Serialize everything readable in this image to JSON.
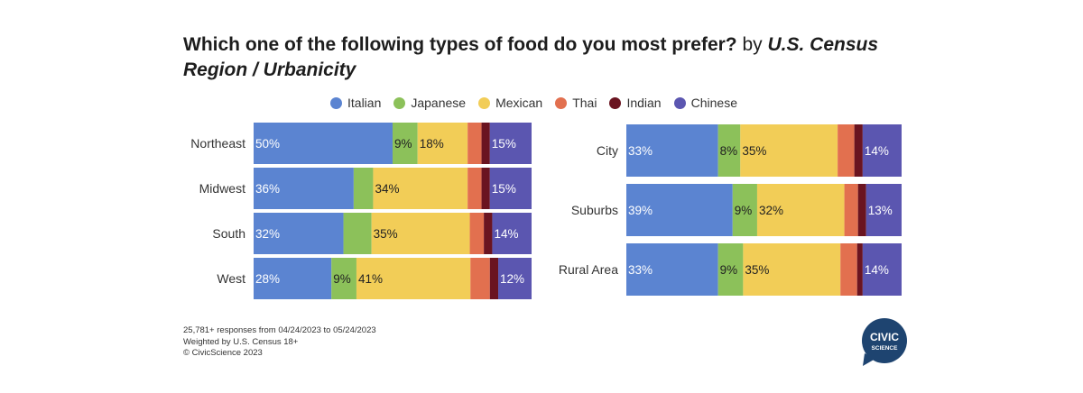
{
  "title": {
    "main": "Which one of the following types of food do you most prefer?",
    "by": " by ",
    "region": "U.S. Census Region / Urbanicity"
  },
  "colors": {
    "Italian": "#5b84d1",
    "Japanese": "#8cc15a",
    "Mexican": "#f2cd57",
    "Thai": "#e2704f",
    "Indian": "#6a1420",
    "Chinese": "#5b56b0"
  },
  "chart_data": [
    {
      "type": "bar",
      "orientation": "horizontal-stacked-100",
      "categories": [
        "Northeast",
        "Midwest",
        "South",
        "West"
      ],
      "series": [
        {
          "name": "Italian",
          "values": [
            50,
            36,
            32,
            28
          ],
          "labels": [
            "50%",
            "36%",
            "32%",
            "28%"
          ]
        },
        {
          "name": "Japanese",
          "values": [
            9,
            7,
            10,
            9
          ],
          "labels": [
            "9%",
            "",
            "",
            "9%"
          ]
        },
        {
          "name": "Mexican",
          "values": [
            18,
            34,
            35,
            41
          ],
          "labels": [
            "18%",
            "34%",
            "35%",
            "41%"
          ]
        },
        {
          "name": "Thai",
          "values": [
            5,
            5,
            5,
            7
          ],
          "labels": [
            "",
            "",
            "",
            ""
          ]
        },
        {
          "name": "Indian",
          "values": [
            3,
            3,
            3,
            3
          ],
          "labels": [
            "",
            "",
            "",
            ""
          ]
        },
        {
          "name": "Chinese",
          "values": [
            15,
            15,
            14,
            12
          ],
          "labels": [
            "15%",
            "15%",
            "14%",
            "12%"
          ]
        }
      ]
    },
    {
      "type": "bar",
      "orientation": "horizontal-stacked-100",
      "categories": [
        "City",
        "Suburbs",
        "Rural Area"
      ],
      "series": [
        {
          "name": "Italian",
          "values": [
            33,
            39,
            33
          ],
          "labels": [
            "33%",
            "39%",
            "33%"
          ]
        },
        {
          "name": "Japanese",
          "values": [
            8,
            9,
            9
          ],
          "labels": [
            "8%",
            "9%",
            "9%"
          ]
        },
        {
          "name": "Mexican",
          "values": [
            35,
            32,
            35
          ],
          "labels": [
            "35%",
            "32%",
            "35%"
          ]
        },
        {
          "name": "Thai",
          "values": [
            6,
            5,
            6
          ],
          "labels": [
            "",
            "",
            ""
          ]
        },
        {
          "name": "Indian",
          "values": [
            3,
            3,
            2
          ],
          "labels": [
            "",
            "",
            ""
          ]
        },
        {
          "name": "Chinese",
          "values": [
            14,
            13,
            14
          ],
          "labels": [
            "14%",
            "13%",
            "14%"
          ]
        }
      ]
    }
  ],
  "footnote": [
    "25,781+ responses from 04/24/2023 to 05/24/2023",
    "Weighted by U.S. Census 18+",
    "© CivicScience 2023"
  ],
  "logo": {
    "line1": "CIVIC",
    "line2": "SCIENCE"
  }
}
